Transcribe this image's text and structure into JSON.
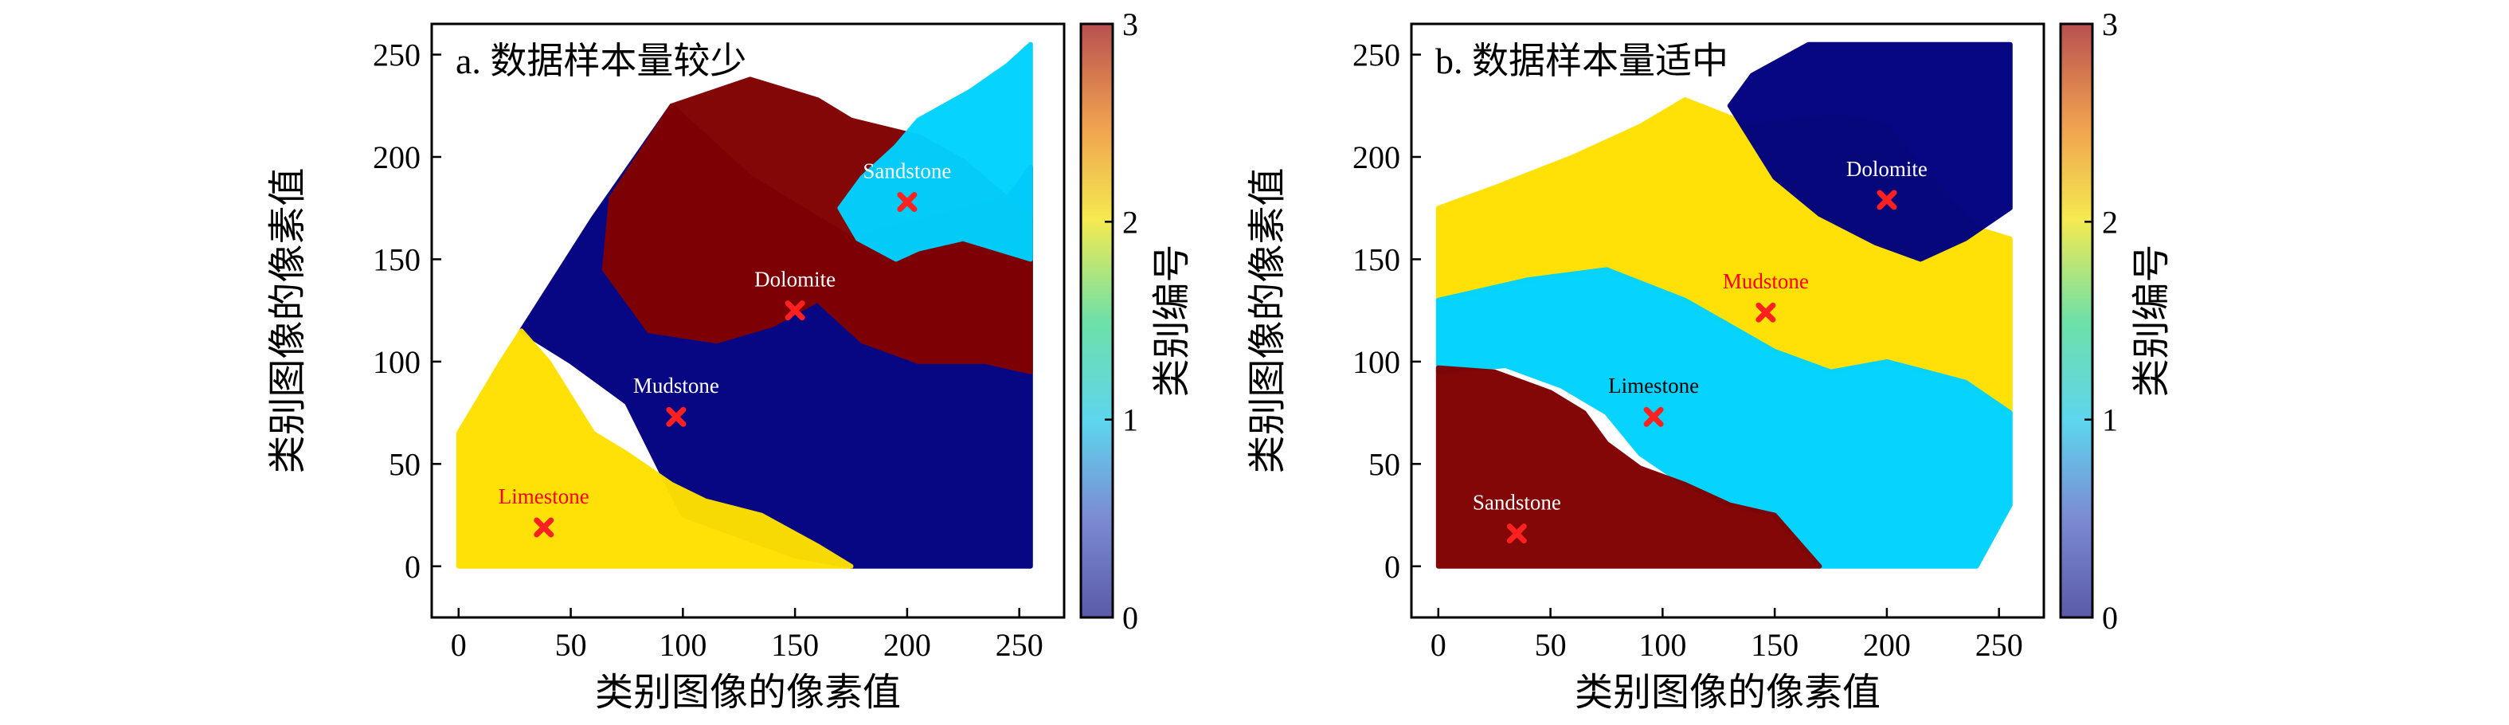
{
  "chart_data": [
    {
      "type": "scatter",
      "title": "a. 数据样本量较少",
      "xlabel": "类别图像的像素值",
      "ylabel": "类别图像的像素值",
      "xlim": [
        -12,
        270
      ],
      "ylim": [
        -25,
        265
      ],
      "xticks": [
        0,
        50,
        100,
        150,
        200,
        250
      ],
      "yticks": [
        0,
        50,
        100,
        150,
        200,
        250
      ],
      "colorbar": {
        "label": "类别编号",
        "range": [
          0,
          3
        ],
        "ticks": [
          0,
          1,
          2,
          3
        ]
      },
      "regions": [
        {
          "class": 0,
          "color": "#000080",
          "points": [
            [
              100,
              25
            ],
            [
              150,
              5
            ],
            [
              175,
              0
            ],
            [
              255,
              0
            ],
            [
              255,
              195
            ],
            [
              245,
              180
            ],
            [
              175,
              160
            ],
            [
              130,
              190
            ],
            [
              95,
              225
            ],
            [
              60,
              170
            ],
            [
              28,
              115
            ],
            [
              50,
              100
            ],
            [
              75,
              80
            ]
          ]
        },
        {
          "class": 3,
          "color": "#800000",
          "points": [
            [
              95,
              225
            ],
            [
              130,
              238
            ],
            [
              160,
              228
            ],
            [
              175,
              218
            ],
            [
              205,
              210
            ],
            [
              225,
              198
            ],
            [
              255,
              170
            ],
            [
              255,
              95
            ],
            [
              235,
              100
            ],
            [
              205,
              100
            ],
            [
              180,
              110
            ],
            [
              160,
              130
            ],
            [
              140,
              118
            ],
            [
              115,
              110
            ],
            [
              85,
              115
            ],
            [
              65,
              145
            ],
            [
              68,
              180
            ]
          ]
        },
        {
          "class": 2,
          "color": "#FFE100",
          "points": [
            [
              0,
              0
            ],
            [
              0,
              65
            ],
            [
              18,
              98
            ],
            [
              28,
              115
            ],
            [
              40,
              100
            ],
            [
              60,
              65
            ],
            [
              75,
              55
            ],
            [
              95,
              40
            ],
            [
              110,
              32
            ],
            [
              135,
              25
            ],
            [
              160,
              10
            ],
            [
              175,
              0
            ]
          ]
        },
        {
          "class": 1,
          "color": "#00D2FF",
          "points": [
            [
              195,
              150
            ],
            [
              178,
              160
            ],
            [
              170,
              175
            ],
            [
              180,
              190
            ],
            [
              195,
              205
            ],
            [
              205,
              218
            ],
            [
              228,
              232
            ],
            [
              245,
              245
            ],
            [
              255,
              255
            ],
            [
              255,
              150
            ],
            [
              225,
              160
            ],
            [
              205,
              155
            ]
          ]
        }
      ],
      "annotations": [
        {
          "text": "Sandstone",
          "x": 200,
          "y": 178,
          "text_color": "#ffffff"
        },
        {
          "text": "Dolomite",
          "x": 150,
          "y": 125,
          "text_color": "#ffffff"
        },
        {
          "text": "Mudstone",
          "x": 97,
          "y": 73,
          "text_color": "#ffffff"
        },
        {
          "text": "Limestone",
          "x": 38,
          "y": 19,
          "text_color": "#ff0000"
        }
      ],
      "marker_color": "#ff2020"
    },
    {
      "type": "scatter",
      "title": "b. 数据样本量适中",
      "xlabel": "类别图像的像素值",
      "ylabel": "类别图像的像素值",
      "xlim": [
        -12,
        270
      ],
      "ylim": [
        -25,
        265
      ],
      "xticks": [
        0,
        50,
        100,
        150,
        200,
        250
      ],
      "yticks": [
        0,
        50,
        100,
        150,
        200,
        250
      ],
      "colorbar": {
        "label": "类别编号",
        "range": [
          0,
          3
        ],
        "ticks": [
          0,
          1,
          2,
          3
        ]
      },
      "regions": [
        {
          "class": 2,
          "color": "#FFE100",
          "points": [
            [
              0,
              130
            ],
            [
              0,
              175
            ],
            [
              25,
              185
            ],
            [
              60,
              200
            ],
            [
              90,
              215
            ],
            [
              110,
              228
            ],
            [
              140,
              215
            ],
            [
              180,
              220
            ],
            [
              200,
              215
            ],
            [
              215,
              195
            ],
            [
              240,
              165
            ],
            [
              255,
              160
            ],
            [
              255,
              75
            ],
            [
              235,
              90
            ],
            [
              200,
              100
            ],
            [
              175,
              95
            ],
            [
              150,
              105
            ],
            [
              110,
              130
            ],
            [
              75,
              145
            ],
            [
              40,
              140
            ]
          ]
        },
        {
          "class": 0,
          "color": "#000080",
          "points": [
            [
              130,
              225
            ],
            [
              140,
              240
            ],
            [
              165,
              255
            ],
            [
              255,
              255
            ],
            [
              255,
              175
            ],
            [
              235,
              160
            ],
            [
              215,
              150
            ],
            [
              195,
              158
            ],
            [
              170,
              172
            ],
            [
              150,
              190
            ]
          ]
        },
        {
          "class": 1,
          "color": "#00D2FF",
          "points": [
            [
              0,
              95
            ],
            [
              30,
              98
            ],
            [
              55,
              88
            ],
            [
              75,
              75
            ],
            [
              90,
              55
            ],
            [
              110,
              40
            ],
            [
              130,
              30
            ],
            [
              150,
              25
            ],
            [
              170,
              0
            ],
            [
              240,
              0
            ],
            [
              255,
              30
            ],
            [
              255,
              75
            ],
            [
              235,
              90
            ],
            [
              200,
              100
            ],
            [
              175,
              95
            ],
            [
              150,
              105
            ],
            [
              110,
              130
            ],
            [
              75,
              145
            ],
            [
              40,
              140
            ],
            [
              0,
              130
            ]
          ]
        },
        {
          "class": 3,
          "color": "#800000",
          "points": [
            [
              0,
              0
            ],
            [
              0,
              97
            ],
            [
              25,
              95
            ],
            [
              50,
              85
            ],
            [
              65,
              75
            ],
            [
              75,
              60
            ],
            [
              90,
              48
            ],
            [
              110,
              40
            ],
            [
              130,
              30
            ],
            [
              150,
              25
            ],
            [
              170,
              0
            ]
          ]
        }
      ],
      "annotations": [
        {
          "text": "Dolomite",
          "x": 200,
          "y": 179,
          "text_color": "#ffffff"
        },
        {
          "text": "Mudstone",
          "x": 146,
          "y": 124,
          "text_color": "#ff0000"
        },
        {
          "text": "Limestone",
          "x": 96,
          "y": 73,
          "text_color": "#000000"
        },
        {
          "text": "Sandstone",
          "x": 35,
          "y": 16,
          "text_color": "#ffffff"
        }
      ],
      "marker_color": "#ff2020"
    }
  ]
}
